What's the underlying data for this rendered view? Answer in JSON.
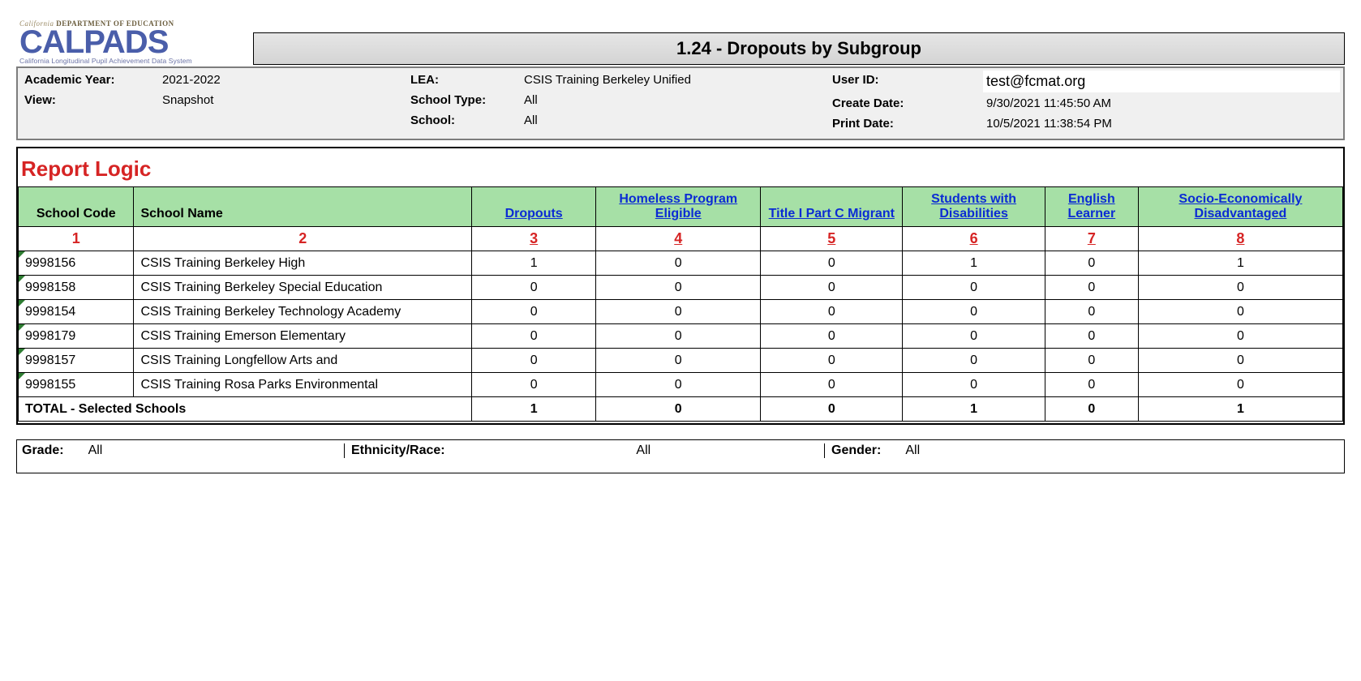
{
  "logo": {
    "dept_prefix": "California",
    "dept_rest": " DEPARTMENT OF EDUCATION",
    "main": "CALPADS",
    "sub": "California Longitudinal Pupil Achievement Data System"
  },
  "title": "1.24 - Dropouts by Subgroup",
  "meta": {
    "academic_year_label": "Academic Year:",
    "academic_year": "2021-2022",
    "view_label": "View:",
    "view": "Snapshot",
    "lea_label": "LEA:",
    "lea": "CSIS Training Berkeley Unified",
    "school_type_label": "School Type:",
    "school_type": "All",
    "school_label": "School:",
    "school": "All",
    "user_id_label": "User ID:",
    "user_id": "test@fcmat.org",
    "create_date_label": "Create Date:",
    "create_date": "9/30/2021 11:45:50 AM",
    "print_date_label": "Print Date:",
    "print_date": "10/5/2021 11:38:54 PM"
  },
  "section_title": "Report Logic",
  "table": {
    "columns": [
      {
        "label": "School Code",
        "link": false,
        "align": "center",
        "width": "130"
      },
      {
        "label": "School Name",
        "link": false,
        "align": "left",
        "width": "380"
      },
      {
        "label": "Dropouts",
        "link": true,
        "align": "center",
        "width": "140"
      },
      {
        "label": "Homeless Program Eligible",
        "link": true,
        "align": "center",
        "width": "185"
      },
      {
        "label": "Title I Part C Migrant",
        "link": true,
        "align": "center",
        "width": "160"
      },
      {
        "label": "Students with Disabilities",
        "link": true,
        "align": "center",
        "width": "160"
      },
      {
        "label": "English Learner",
        "link": true,
        "align": "center",
        "width": "105"
      },
      {
        "label": "Socio-Economically Disadvantaged",
        "link": true,
        "align": "center",
        "width": "230"
      }
    ],
    "index_row": [
      "1",
      "2",
      "3",
      "4",
      "5",
      "6",
      "7",
      "8"
    ],
    "index_underline_from": 2,
    "rows": [
      {
        "code": "9998156",
        "name": "CSIS Training Berkeley High",
        "v": [
          1,
          0,
          0,
          1,
          0,
          1
        ]
      },
      {
        "code": "9998158",
        "name": "CSIS Training Berkeley Special Education",
        "v": [
          0,
          0,
          0,
          0,
          0,
          0
        ]
      },
      {
        "code": "9998154",
        "name": "CSIS Training Berkeley Technology Academy",
        "v": [
          0,
          0,
          0,
          0,
          0,
          0
        ]
      },
      {
        "code": "9998179",
        "name": "CSIS Training Emerson Elementary",
        "v": [
          0,
          0,
          0,
          0,
          0,
          0
        ]
      },
      {
        "code": "9998157",
        "name": "CSIS Training Longfellow Arts and",
        "v": [
          0,
          0,
          0,
          0,
          0,
          0
        ]
      },
      {
        "code": "9998155",
        "name": "CSIS Training Rosa Parks Environmental",
        "v": [
          0,
          0,
          0,
          0,
          0,
          0
        ]
      }
    ],
    "total_label": "TOTAL - Selected Schools",
    "totals": [
      1,
      0,
      0,
      1,
      0,
      1
    ]
  },
  "filters": {
    "grade_label": "Grade:",
    "grade": "All",
    "ethnicity_label": "Ethnicity/Race:",
    "ethnicity": "All",
    "gender_label": "Gender:",
    "gender": "All"
  },
  "colors": {
    "header_green": "#a6e0a6",
    "red": "#d62424",
    "link_blue": "#0b2bd4",
    "meta_bg": "#f0f0f0",
    "title_grad_top": "#e6e6e6",
    "title_grad_bot": "#d4d4d4"
  }
}
